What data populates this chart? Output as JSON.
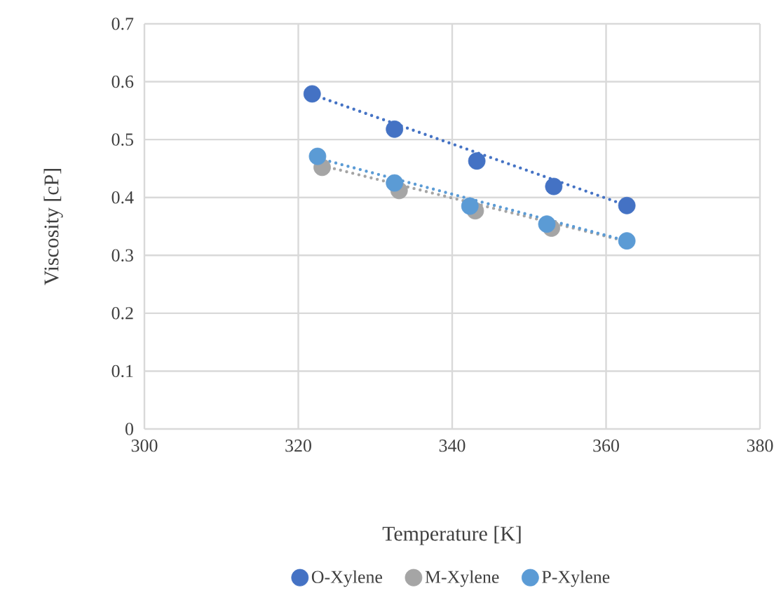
{
  "chart_data": {
    "type": "scatter",
    "xlabel": "Temperature [K]",
    "ylabel": "Viscosity [cP]",
    "xlim": [
      300,
      380
    ],
    "xticks": [
      300,
      320,
      340,
      360,
      380
    ],
    "ylim": [
      0,
      0.7
    ],
    "yticks": [
      0,
      0.1,
      0.2,
      0.3,
      0.4,
      0.5,
      0.6,
      0.7
    ],
    "grid": true,
    "legend": "bottom",
    "marker": "circle",
    "series": [
      {
        "name": "O-Xylene",
        "color": "#4472c4",
        "x": [
          321.8,
          332.5,
          343.2,
          353.2,
          362.7
        ],
        "values": [
          0.579,
          0.518,
          0.463,
          0.419,
          0.386
        ]
      },
      {
        "name": "M-Xylene",
        "color": "#a5a5a5",
        "x": [
          323.1,
          333.1,
          343.0,
          352.9
        ],
        "values": [
          0.452,
          0.412,
          0.377,
          0.347
        ]
      },
      {
        "name": "P-Xylene",
        "color": "#5b9bd5",
        "x": [
          322.5,
          332.5,
          342.3,
          352.3,
          362.7
        ],
        "values": [
          0.471,
          0.425,
          0.385,
          0.354,
          0.325
        ]
      },
      {
        "type": "line",
        "color": "#4472c4",
        "line_style": "dotted",
        "marker": "none",
        "x": [
          321.8,
          362.7
        ],
        "values": [
          0.578,
          0.386
        ]
      },
      {
        "type": "line",
        "color": "#a5a5a5",
        "line_style": "dotted",
        "marker": "none",
        "x": [
          323.1,
          361.5
        ],
        "values": [
          0.455,
          0.328
        ]
      },
      {
        "type": "line",
        "color": "#5b9bd5",
        "line_style": "dotted",
        "marker": "none",
        "x": [
          322.5,
          362.7
        ],
        "values": [
          0.468,
          0.325
        ]
      }
    ]
  }
}
